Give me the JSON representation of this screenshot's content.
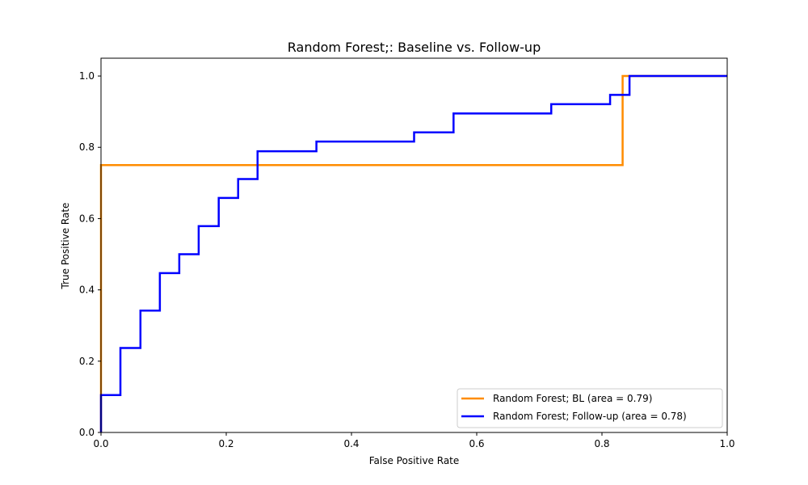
{
  "chart_data": {
    "type": "line",
    "title": "Random Forest;: Baseline vs. Follow-up",
    "xlabel": "False Positive Rate",
    "ylabel": "True Positive Rate",
    "xlim": [
      0,
      1
    ],
    "ylim": [
      0,
      1.05
    ],
    "xticks": [
      "0.0",
      "0.2",
      "0.4",
      "0.6",
      "0.8",
      "1.0"
    ],
    "yticks": [
      "0.0",
      "0.2",
      "0.4",
      "0.6",
      "0.8",
      "1.0"
    ],
    "grid": false,
    "legend_position": "lower-right",
    "step": true,
    "series": [
      {
        "name": "Random Forest; BL (area = 0.79)",
        "color": "#ff8c00",
        "x": [
          0.0,
          0.0,
          0.833,
          0.833,
          1.0
        ],
        "y": [
          0.0,
          0.75,
          0.75,
          1.0,
          1.0
        ]
      },
      {
        "name": "Random Forest; Follow-up (area = 0.78)",
        "color": "#0000ff",
        "x": [
          0.0,
          0.0,
          0.031,
          0.031,
          0.063,
          0.063,
          0.094,
          0.094,
          0.125,
          0.125,
          0.156,
          0.156,
          0.188,
          0.188,
          0.219,
          0.219,
          0.25,
          0.25,
          0.344,
          0.344,
          0.5,
          0.5,
          0.563,
          0.563,
          0.719,
          0.719,
          0.813,
          0.813,
          0.844,
          0.844,
          1.0
        ],
        "y": [
          0.0,
          0.105,
          0.105,
          0.237,
          0.237,
          0.342,
          0.342,
          0.447,
          0.447,
          0.5,
          0.5,
          0.579,
          0.579,
          0.658,
          0.658,
          0.711,
          0.711,
          0.789,
          0.789,
          0.816,
          0.816,
          0.842,
          0.842,
          0.895,
          0.895,
          0.921,
          0.921,
          0.947,
          0.947,
          1.0,
          1.0
        ]
      }
    ]
  }
}
